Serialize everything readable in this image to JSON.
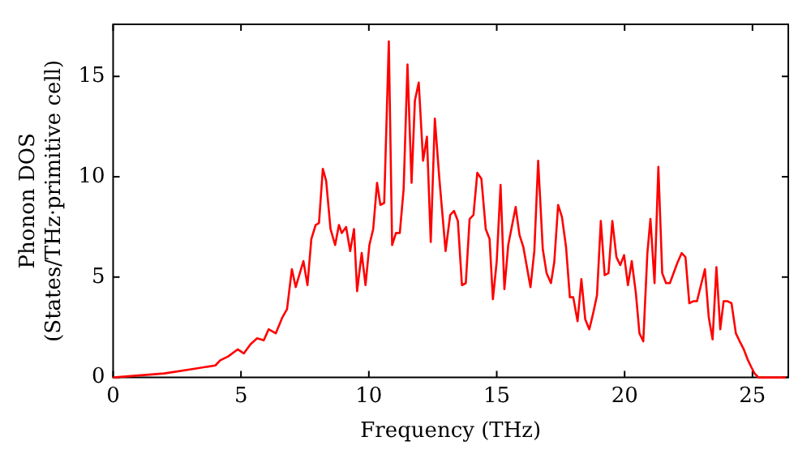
{
  "chart_data": {
    "type": "line",
    "xlabel": "Frequency (THz)",
    "ylabel": "Phonon DOS\n(States/THz·primitive cell)",
    "xlim": [
      0,
      26.4
    ],
    "ylim": [
      0,
      17.6
    ],
    "xticks": [
      0,
      5,
      10,
      15,
      20,
      25
    ],
    "yticks": [
      0,
      5,
      10,
      15
    ],
    "grid": false,
    "legend": false,
    "marker": "none",
    "line_style": "solid",
    "series": [
      {
        "color": "#ff0000",
        "x": [
          0,
          1,
          2,
          3,
          4,
          4.18,
          4.5,
          4.87,
          5.11,
          5.37,
          5.63,
          5.89,
          6.08,
          6.36,
          6.62,
          6.8,
          6.99,
          7.14,
          7.44,
          7.6,
          7.75,
          7.92,
          8.05,
          8.2,
          8.33,
          8.5,
          8.68,
          8.83,
          8.94,
          9.11,
          9.27,
          9.42,
          9.54,
          9.72,
          9.87,
          10.02,
          10.17,
          10.32,
          10.45,
          10.6,
          10.78,
          10.91,
          11.06,
          11.21,
          11.36,
          11.51,
          11.67,
          11.8,
          11.95,
          12.12,
          12.27,
          12.42,
          12.58,
          12.75,
          13.0,
          13.18,
          13.33,
          13.48,
          13.64,
          13.79,
          13.94,
          14.09,
          14.24,
          14.4,
          14.57,
          14.72,
          14.85,
          15.0,
          15.15,
          15.3,
          15.45,
          15.74,
          15.89,
          16.04,
          16.32,
          16.47,
          16.62,
          16.8,
          16.95,
          17.12,
          17.25,
          17.4,
          17.55,
          17.71,
          17.86,
          17.99,
          18.16,
          18.31,
          18.46,
          18.62,
          18.77,
          18.92,
          19.07,
          19.22,
          19.37,
          19.52,
          19.68,
          19.83,
          19.98,
          20.13,
          20.28,
          20.44,
          20.58,
          20.73,
          20.89,
          21.01,
          21.17,
          21.32,
          21.47,
          21.62,
          21.77,
          22.06,
          22.23,
          22.38,
          22.53,
          22.68,
          22.83,
          23.14,
          23.29,
          23.44,
          23.59,
          23.74,
          23.87,
          24.03,
          24.18,
          24.35,
          24.5,
          24.66,
          24.81,
          24.96,
          25.08,
          25.24,
          26.3
        ],
        "values": [
          0,
          0.1,
          0.2,
          0.4,
          0.6,
          0.85,
          1.05,
          1.4,
          1.2,
          1.65,
          1.95,
          1.85,
          2.4,
          2.2,
          3.0,
          3.4,
          5.4,
          4.5,
          5.8,
          4.6,
          6.9,
          7.6,
          7.7,
          10.4,
          9.8,
          7.4,
          6.6,
          7.6,
          7.2,
          7.5,
          6.3,
          7.4,
          4.3,
          6.2,
          4.6,
          6.6,
          7.4,
          9.7,
          8.6,
          8.7,
          16.75,
          6.6,
          7.2,
          7.2,
          9.4,
          15.6,
          9.7,
          13.8,
          14.7,
          10.8,
          12.0,
          6.75,
          12.9,
          10.0,
          6.3,
          8.1,
          8.3,
          7.8,
          4.6,
          4.7,
          7.9,
          8.1,
          10.2,
          9.9,
          7.4,
          6.9,
          3.9,
          5.8,
          9.6,
          4.4,
          6.6,
          8.5,
          7.1,
          6.5,
          4.5,
          6.3,
          10.8,
          6.4,
          5.2,
          4.7,
          5.75,
          8.6,
          8.0,
          6.5,
          4.0,
          4.0,
          2.8,
          4.9,
          2.9,
          2.4,
          3.2,
          4.1,
          7.8,
          5.1,
          5.2,
          7.8,
          6.0,
          5.6,
          6.1,
          4.6,
          5.8,
          4.2,
          2.2,
          1.8,
          6.2,
          7.9,
          4.7,
          10.5,
          5.2,
          4.7,
          4.7,
          5.7,
          6.2,
          6.0,
          3.7,
          3.8,
          3.8,
          5.4,
          3.0,
          1.9,
          5.5,
          2.4,
          3.8,
          3.8,
          3.7,
          2.2,
          1.8,
          1.4,
          0.9,
          0.5,
          0.2,
          0,
          0
        ]
      }
    ]
  }
}
